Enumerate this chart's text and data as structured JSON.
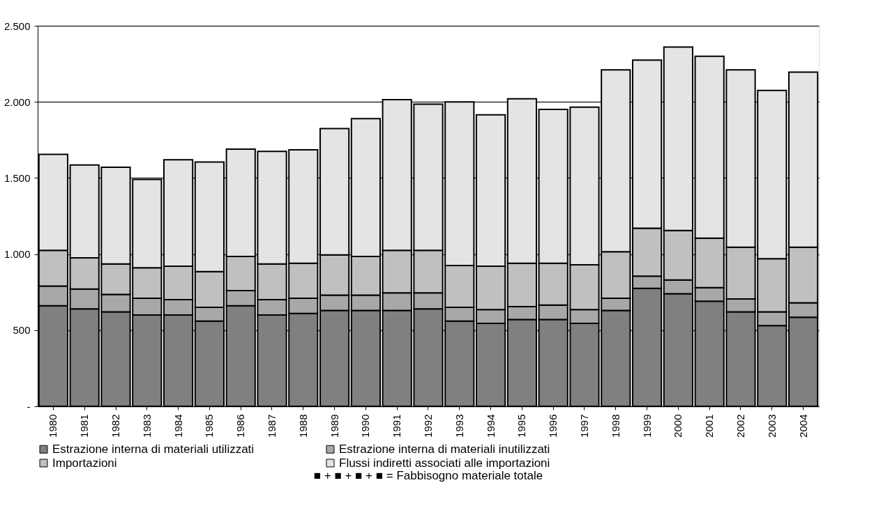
{
  "chart_data": {
    "type": "bar",
    "stacked": true,
    "categories": [
      "1980",
      "1981",
      "1982",
      "1983",
      "1984",
      "1985",
      "1986",
      "1987",
      "1988",
      "1989",
      "1990",
      "1991",
      "1992",
      "1993",
      "1994",
      "1995",
      "1996",
      "1997",
      "1998",
      "1999",
      "2000",
      "2001",
      "2002",
      "2003",
      "2004"
    ],
    "series": [
      {
        "name": "Estrazione interna di materiali utilizzati",
        "color": "#808080",
        "values": [
          660,
          640,
          620,
          600,
          600,
          560,
          660,
          600,
          610,
          630,
          630,
          630,
          640,
          560,
          545,
          570,
          570,
          545,
          630,
          775,
          740,
          690,
          620,
          530,
          585
        ]
      },
      {
        "name": "Estrazione interna di materiali inutilizzati",
        "color": "#a8a8a8",
        "values": [
          130,
          130,
          115,
          110,
          100,
          90,
          100,
          100,
          100,
          100,
          100,
          115,
          105,
          90,
          90,
          85,
          95,
          90,
          80,
          80,
          90,
          90,
          85,
          90,
          95
        ]
      },
      {
        "name": "Importazioni",
        "color": "#c0c0c0",
        "values": [
          235,
          205,
          200,
          200,
          220,
          235,
          225,
          235,
          230,
          265,
          255,
          280,
          280,
          275,
          285,
          285,
          275,
          295,
          305,
          315,
          325,
          325,
          340,
          350,
          365
        ]
      },
      {
        "name": "Flussi indiretti associati alle importazioni",
        "color": "#e4e4e4",
        "values": [
          630,
          610,
          635,
          580,
          700,
          720,
          705,
          740,
          745,
          830,
          905,
          990,
          960,
          1075,
          995,
          1080,
          1010,
          1035,
          1195,
          1105,
          1205,
          1195,
          1165,
          1105,
          1150
        ]
      }
    ],
    "ylim": [
      0,
      2500
    ],
    "yticks": [
      {
        "value": 0,
        "label": "-"
      },
      500,
      {
        "value": 1000,
        "label": "1.000"
      },
      {
        "value": 1500,
        "label": "1.500"
      },
      {
        "value": 2000,
        "label": "2.000"
      },
      {
        "value": 2500,
        "label": "2.500"
      }
    ],
    "grid": "y",
    "legend": "bottom",
    "annotations": [
      "■ + ■ + ■ + ■ = Fabbisogno materiale totale"
    ]
  }
}
